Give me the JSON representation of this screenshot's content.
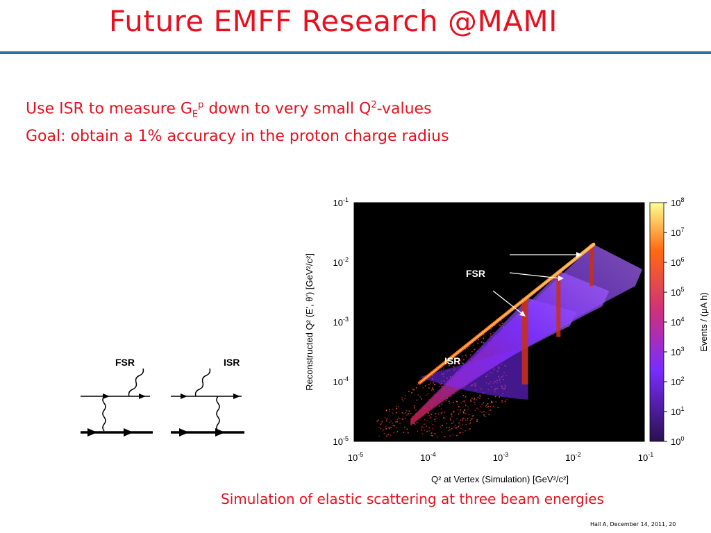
{
  "slide": {
    "title": "Future EMFF Research @MAMI",
    "bullet1": {
      "pre": "Use ISR to measure G",
      "sub": "E",
      "sup": "p",
      "mid": " down to very small Q",
      "sup2": "2",
      "post": "-values"
    },
    "bullet2": "Goal: obtain a 1% accuracy in the proton charge radius",
    "caption": "Simulation of elastic scattering at three beam energies",
    "footer": "Hall A, December 14, 2011, 20"
  },
  "diagrams": {
    "fsr_label": "FSR",
    "isr_label": "ISR"
  },
  "chart_data": {
    "type": "heatmap",
    "x_axis": {
      "label": "Q² at Vertex (Simulation)   [GeV²/c²]",
      "scale": "log",
      "range": [
        1e-05,
        0.1
      ],
      "ticks": [
        {
          "base": "10",
          "exp": "-5"
        },
        {
          "base": "10",
          "exp": "-4"
        },
        {
          "base": "10",
          "exp": "-3"
        },
        {
          "base": "10",
          "exp": "-2"
        },
        {
          "base": "10",
          "exp": "-1"
        }
      ]
    },
    "y_axis": {
      "label": "Reconstructed Q² (E', θ')  [GeV²/c²]",
      "scale": "log",
      "range": [
        1e-05,
        0.1
      ],
      "ticks": [
        {
          "base": "10",
          "exp": "-1"
        },
        {
          "base": "10",
          "exp": "-2"
        },
        {
          "base": "10",
          "exp": "-3"
        },
        {
          "base": "10",
          "exp": "-4"
        },
        {
          "base": "10",
          "exp": "-5"
        }
      ]
    },
    "colorbar": {
      "label": "Events /  (μA h)",
      "scale": "log",
      "range": [
        1,
        100000000.0
      ],
      "ticks": [
        {
          "base": "10",
          "exp": "8"
        },
        {
          "base": "10",
          "exp": "7"
        },
        {
          "base": "10",
          "exp": "6"
        },
        {
          "base": "10",
          "exp": "5"
        },
        {
          "base": "10",
          "exp": "4"
        },
        {
          "base": "10",
          "exp": "3"
        },
        {
          "base": "10",
          "exp": "2"
        },
        {
          "base": "10",
          "exp": "1"
        },
        {
          "base": "10",
          "exp": "0"
        }
      ],
      "colors": [
        "#2a1050",
        "#7a2cff",
        "#d0307a",
        "#ff6a10",
        "#ffff90"
      ]
    },
    "annotations": [
      {
        "text": "FSR"
      },
      {
        "text": "ISR"
      }
    ],
    "diagonal_range": [
      8e-05,
      0.02
    ],
    "beam_energy_q2_max": [
      0.0025,
      0.007,
      0.02
    ]
  }
}
